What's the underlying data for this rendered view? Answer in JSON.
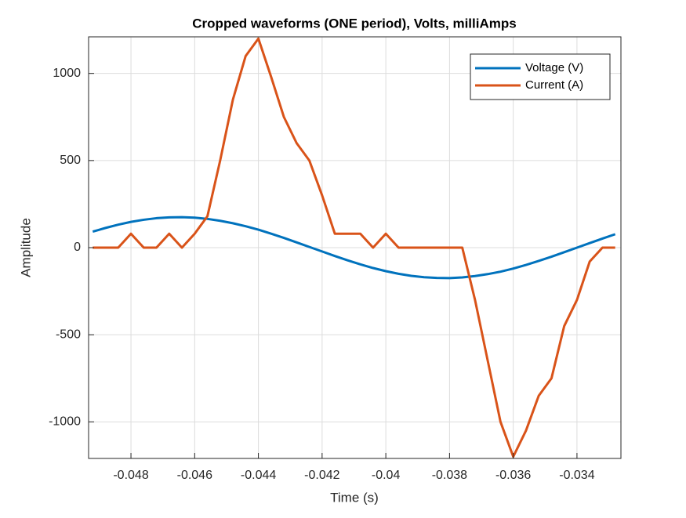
{
  "chart_data": {
    "type": "line",
    "title": "Cropped waveforms (ONE period), Volts, milliAmps",
    "x_label": "Time (s)",
    "y_label": "Amplitude",
    "x": [
      -0.0492,
      -0.0488,
      -0.0484,
      -0.048,
      -0.0476,
      -0.0472,
      -0.0468,
      -0.0464,
      -0.046,
      -0.0456,
      -0.0452,
      -0.0448,
      -0.0444,
      -0.044,
      -0.0436,
      -0.0432,
      -0.0428,
      -0.0424,
      -0.042,
      -0.0416,
      -0.0412,
      -0.0408,
      -0.0404,
      -0.04,
      -0.0396,
      -0.0392,
      -0.0388,
      -0.0384,
      -0.038,
      -0.0376,
      -0.0372,
      -0.0368,
      -0.0364,
      -0.036,
      -0.0356,
      -0.0352,
      -0.0348,
      -0.0344,
      -0.034,
      -0.0336,
      -0.0332,
      -0.0328
    ],
    "series": [
      {
        "name": "Voltage (V)",
        "color": "#0072BD",
        "values": [
          92,
          113,
          132,
          148,
          160,
          169,
          174,
          175,
          172,
          165,
          154,
          140,
          123,
          103,
          80,
          56,
          30,
          4,
          -22,
          -48,
          -73,
          -96,
          -117,
          -135,
          -150,
          -162,
          -170,
          -174,
          -175,
          -171,
          -163,
          -152,
          -138,
          -120,
          -99,
          -76,
          -52,
          -26,
          0,
          26,
          52,
          77
        ]
      },
      {
        "name": "Current (A)",
        "color": "#D95319",
        "values": [
          0,
          0,
          0,
          80,
          0,
          0,
          80,
          0,
          80,
          180,
          500,
          850,
          1100,
          1200,
          980,
          750,
          600,
          500,
          300,
          80,
          80,
          80,
          0,
          80,
          0,
          0,
          0,
          0,
          0,
          0,
          -300,
          -650,
          -1000,
          -1200,
          -1050,
          -850,
          -750,
          -450,
          -300,
          -80,
          0,
          0
        ]
      }
    ],
    "xlim": [
      -0.04933,
      -0.03262
    ],
    "ylim": [
      -1210,
      1210
    ],
    "xticks": [
      -0.048,
      -0.046,
      -0.044,
      -0.042,
      -0.04,
      -0.038,
      -0.036,
      -0.034
    ],
    "yticks": [
      -1000,
      -500,
      0,
      500,
      1000
    ],
    "grid": true,
    "legend": "northeast"
  }
}
